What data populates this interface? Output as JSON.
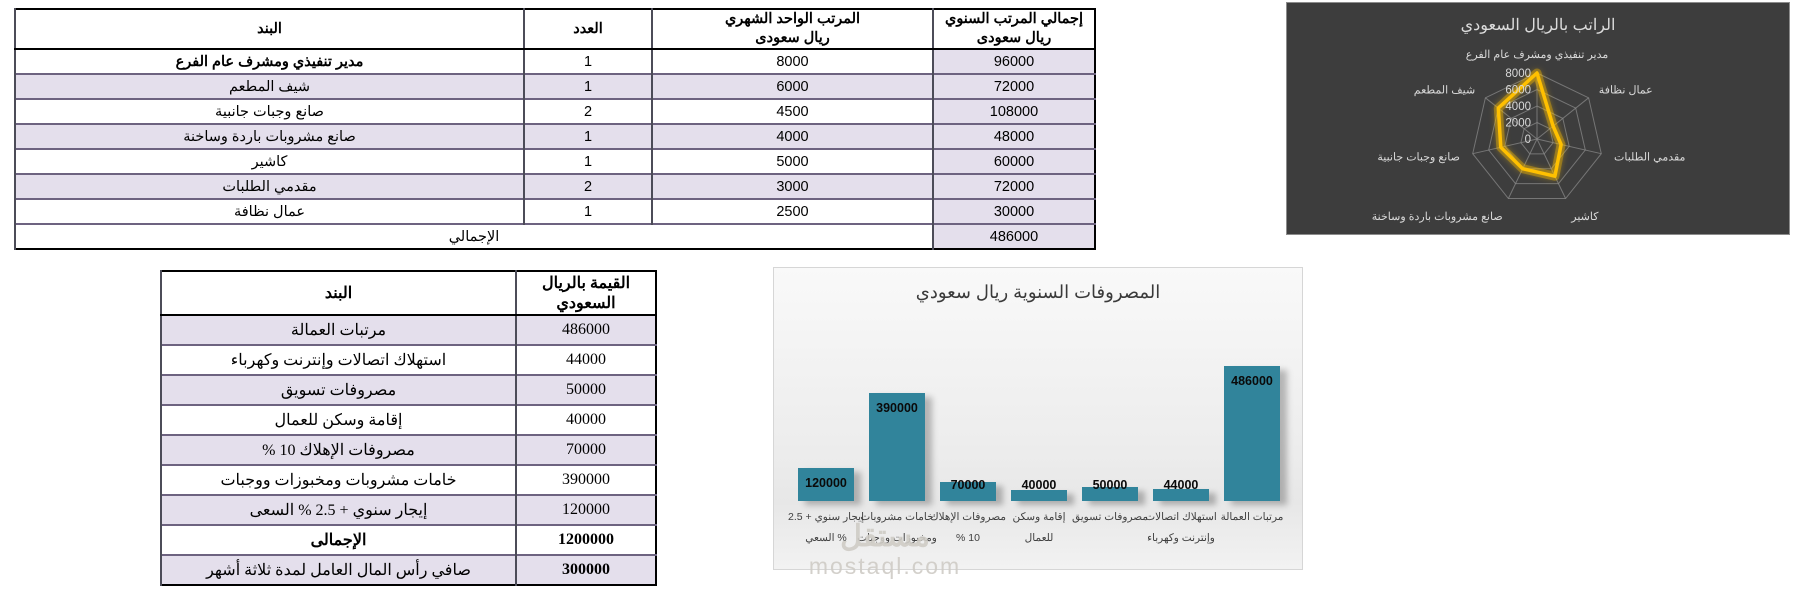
{
  "salary_table": {
    "headers": {
      "item": "البند",
      "count": "العدد",
      "monthly": "المرتب الواحد الشهري\nريال سعودى",
      "annual": "إجمالي المرتب السنوي\nريال سعودى"
    },
    "rows": [
      {
        "item": "مدير تنفيذي ومشرف عام الفرع",
        "count": "1",
        "monthly": "8000",
        "annual": "96000"
      },
      {
        "item": "شيف المطعم",
        "count": "1",
        "monthly": "6000",
        "annual": "72000"
      },
      {
        "item": "صانع وجبات جانبية",
        "count": "2",
        "monthly": "4500",
        "annual": "108000"
      },
      {
        "item": "صانع مشروبات باردة وساخنة",
        "count": "1",
        "monthly": "4000",
        "annual": "48000"
      },
      {
        "item": "كاشير",
        "count": "1",
        "monthly": "5000",
        "annual": "60000"
      },
      {
        "item": "مقدمي الطلبات",
        "count": "2",
        "monthly": "3000",
        "annual": "72000"
      },
      {
        "item": "عمال نظافة",
        "count": "1",
        "monthly": "2500",
        "annual": "30000"
      }
    ],
    "total_label": "الإجمالي",
    "total_value": "486000"
  },
  "expenses_table": {
    "headers": {
      "item": "البند",
      "value": "القيمة بالريال السعودي"
    },
    "rows": [
      {
        "item": "مرتبات العمالة",
        "value": "486000"
      },
      {
        "item": "استهلاك اتصالات وإنترنت وكهرباء",
        "value": "44000"
      },
      {
        "item": "مصروفات تسويق",
        "value": "50000"
      },
      {
        "item": "إقامة وسكن للعمال",
        "value": "40000"
      },
      {
        "item": "مصروفات الإهلاك 10 %",
        "value": "70000"
      },
      {
        "item": "خامات مشروبات ومخبوزات ووجبات",
        "value": "390000"
      },
      {
        "item": "إيجار سنوي + 2.5 % السعى",
        "value": "120000"
      },
      {
        "item": "الإجمالى",
        "value": "1200000"
      },
      {
        "item": "صافي رأس المال العامل لمدة ثلاثة أشهر",
        "value": "300000"
      }
    ]
  },
  "chart_data": [
    {
      "type": "radar",
      "title": "الراتب بالريال السعودي",
      "categories": [
        "مدير تنفيذي ومشرف عام الفرع",
        "عمال نظافة",
        "مقدمي الطلبات",
        "كاشير",
        "صانع مشروبات باردة وساخنة",
        "صانع وجبات جانبية",
        "شيف المطعم"
      ],
      "values": [
        8000,
        2500,
        3000,
        5000,
        4000,
        4500,
        6000
      ],
      "ticks": [
        0,
        2000,
        4000,
        6000,
        8000
      ],
      "rmax": 8000,
      "series_color": "#FFC000",
      "background": "#3D3D3D",
      "grid": true,
      "legend": "none",
      "layout_note": "categories listed clockwise starting at top axis"
    },
    {
      "type": "bar",
      "title": "المصروفات السنوية ريال سعودي",
      "categories": [
        "إيجار سنوي + 2.5 % السعي",
        "خامات مشروبات ومخبوزات ووجبات",
        "مصروفات الإهلاك 10 %",
        "إقامة وسكن للعمال",
        "مصروفات تسويق",
        "استهلاك اتصالات وإنترنت وكهرباء",
        "مرتبات العمالة"
      ],
      "values": [
        120000,
        390000,
        70000,
        40000,
        50000,
        44000,
        486000
      ],
      "bar_color": "#31849B",
      "data_labels": [
        120000,
        390000,
        70000,
        40000,
        50000,
        44000,
        486000
      ],
      "ylim": [
        0,
        500000
      ],
      "grid": false,
      "legend": "none",
      "layout_note": "bars listed left to right; first category of source table is the rightmost bar"
    }
  ],
  "watermark": {
    "logo": "مستقل",
    "domain": "mostaql.com"
  },
  "colors": {
    "row_shade": "#E4DFEC",
    "bar_teal": "#31849B",
    "radar_line": "#FFC000",
    "radar_bg": "#3D3D3D",
    "table_border": "#000000",
    "row_border": "#6d6380"
  }
}
